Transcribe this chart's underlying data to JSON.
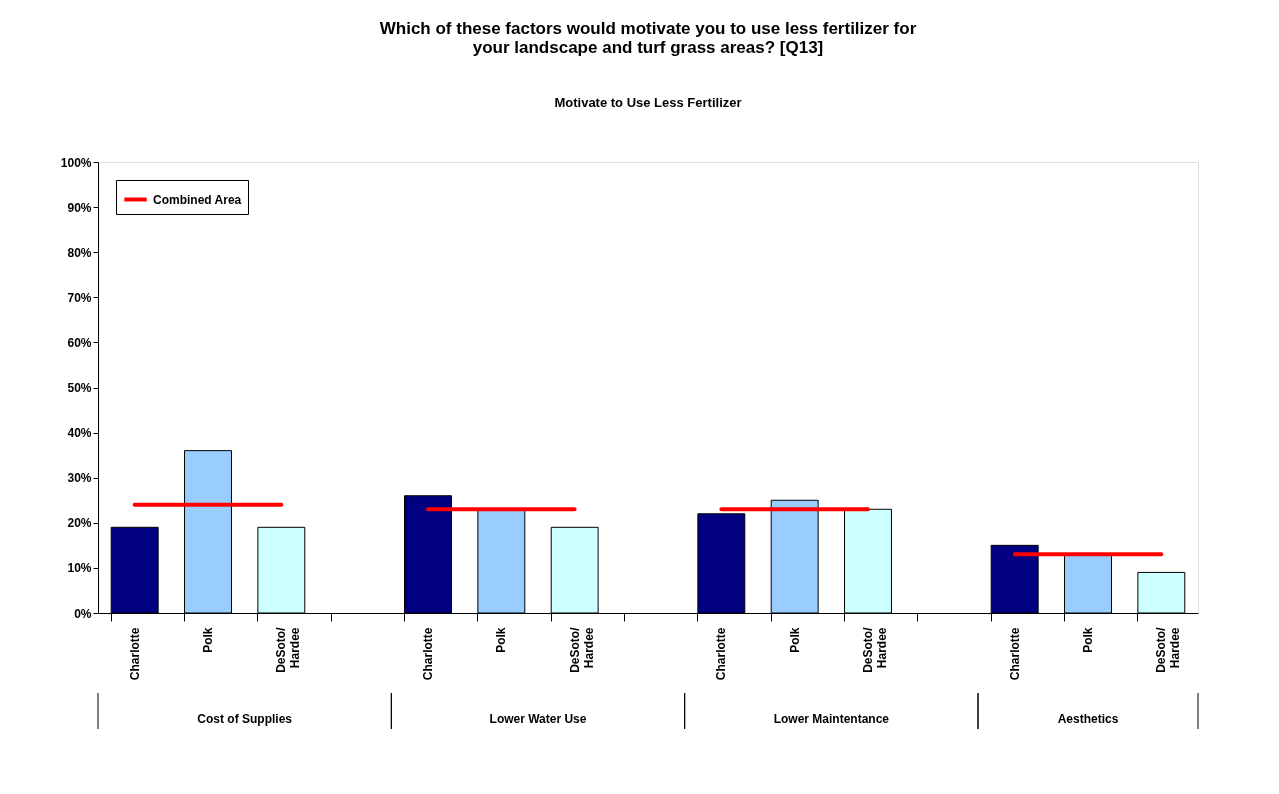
{
  "chart_data": {
    "type": "bar",
    "title": "Which of these factors would motivate you to use less fertilizer for\nyour landscape and turf grass areas?  [Q13]",
    "subtitle": "Motivate to Use Less Fertilizer",
    "categories": [
      "Charlotte",
      "Polk",
      "DeSoto/\nHardee",
      null,
      "Charlotte",
      "Polk",
      "DeSoto/\nHardee",
      null,
      "Charlotte",
      "Polk",
      "DeSoto/\nHardee",
      null,
      "Charlotte",
      "Polk",
      "DeSoto/\nHardee"
    ],
    "values": [
      19,
      36,
      19,
      null,
      26,
      23,
      19,
      null,
      22,
      25,
      23,
      null,
      15,
      13,
      9
    ],
    "colors": [
      "#000080",
      "#99ccff",
      "#ccffff",
      null,
      "#000080",
      "#99ccff",
      "#ccffff",
      null,
      "#000080",
      "#99ccff",
      "#ccffff",
      null,
      "#000080",
      "#99ccff",
      "#ccffff"
    ],
    "series": [
      {
        "type": "line",
        "name": "Combined Area",
        "color": "#ff0000",
        "values": [
          24,
          24,
          24,
          null,
          23,
          23,
          23,
          null,
          23,
          23,
          23,
          null,
          13,
          13,
          13
        ]
      }
    ],
    "annotations": [
      "Cost of Supplies",
      "Lower Water Use",
      "Lower Maintentance",
      "Aesthetics"
    ],
    "ylim": [
      0,
      100
    ],
    "yticks": [
      {
        "value": 0,
        "label": "0%"
      },
      {
        "value": 10,
        "label": "10%"
      },
      {
        "value": 20,
        "label": "20%"
      },
      {
        "value": 30,
        "label": "30%"
      },
      {
        "value": 40,
        "label": "40%"
      },
      {
        "value": 50,
        "label": "50%"
      },
      {
        "value": 60,
        "label": "60%"
      },
      {
        "value": 70,
        "label": "70%"
      },
      {
        "value": 80,
        "label": "80%"
      },
      {
        "value": 90,
        "label": "90%"
      },
      {
        "value": 100,
        "label": "100%"
      }
    ],
    "grid": false,
    "legend": "top left"
  }
}
